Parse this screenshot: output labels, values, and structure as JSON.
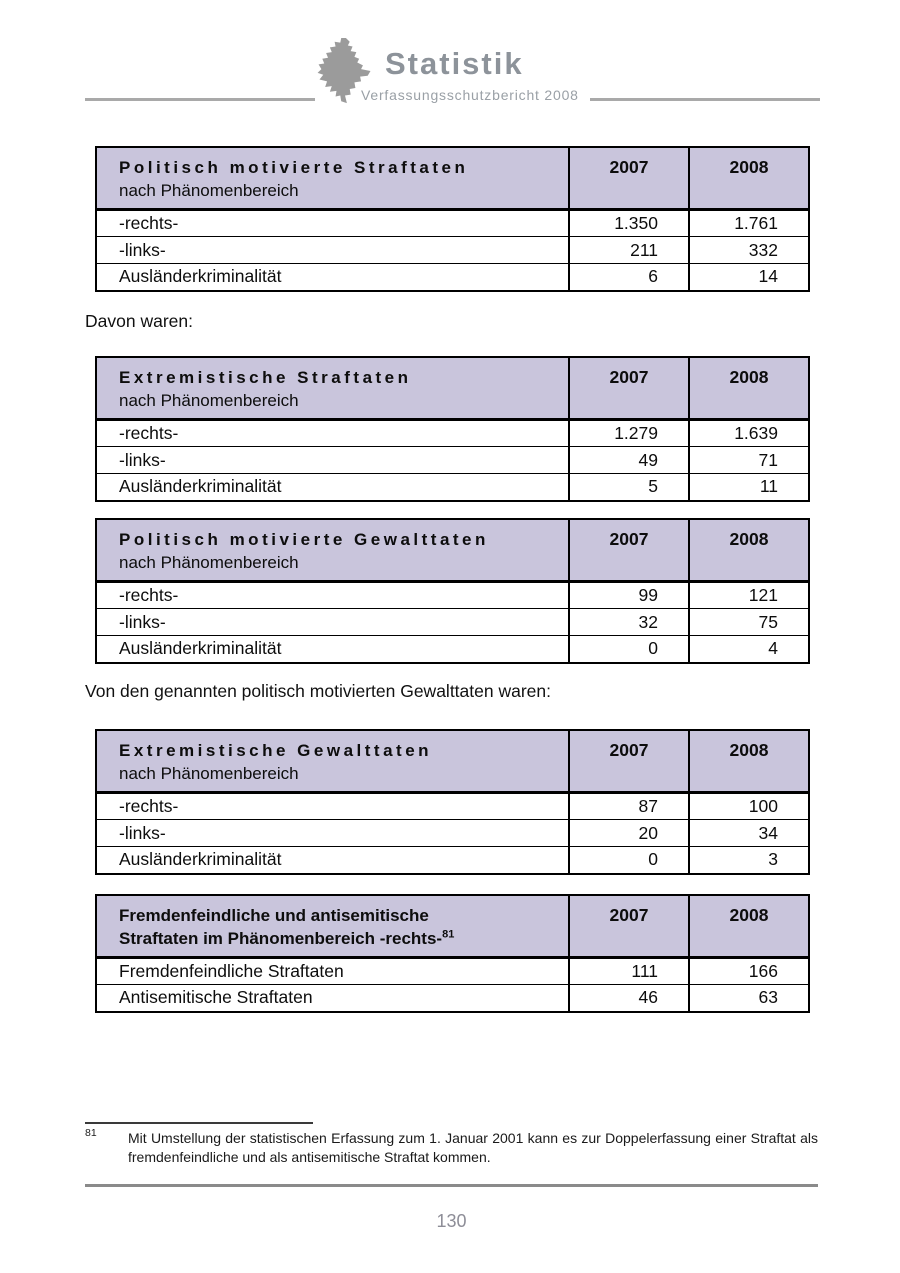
{
  "header": {
    "brand": "Statistik",
    "subtitle": "Verfassungsschutzbericht 2008",
    "logo_icon": "state-map-silhouette",
    "brand_color": "#8d939a",
    "logo_color": "#9b9b9b",
    "rule_color": "#a9a9a9"
  },
  "colors": {
    "table_header_bg": "#c9c5dc",
    "table_border": "#000000",
    "page_number_gray": "#8d8d97"
  },
  "intro1": "Davon waren:",
  "intro2": "Von den genannten politisch motivierten Gewalttaten waren:",
  "tables": [
    {
      "title": "Politisch motivierte Straftaten",
      "subtitle": "nach Phänomenbereich",
      "col_2007": "2007",
      "col_2008": "2008",
      "rows": [
        [
          "-rechts-",
          "1.350",
          "1.761"
        ],
        [
          "-links-",
          "211",
          "332"
        ],
        [
          "Ausländerkriminalität",
          "6",
          "14"
        ]
      ]
    },
    {
      "title": "Extremistische Straftaten",
      "subtitle": "nach Phänomenbereich",
      "col_2007": "2007",
      "col_2008": "2008",
      "rows": [
        [
          "-rechts-",
          "1.279",
          "1.639"
        ],
        [
          "-links-",
          "49",
          "71"
        ],
        [
          "Ausländerkriminalität",
          "5",
          "11"
        ]
      ]
    },
    {
      "title": "Politisch motivierte Gewalttaten",
      "subtitle": "nach Phänomenbereich",
      "col_2007": "2007",
      "col_2008": "2008",
      "rows": [
        [
          "-rechts-",
          "99",
          "121"
        ],
        [
          "-links-",
          "32",
          "75"
        ],
        [
          "Ausländerkriminalität",
          "0",
          "4"
        ]
      ]
    },
    {
      "title": "Extremistische Gewalttaten",
      "subtitle": "nach Phänomenbereich",
      "col_2007": "2007",
      "col_2008": "2008",
      "rows": [
        [
          "-rechts-",
          "87",
          "100"
        ],
        [
          "-links-",
          "20",
          "34"
        ],
        [
          "Ausländerkriminalität",
          "0",
          "3"
        ]
      ]
    },
    {
      "title_line1": "Fremdenfeindliche und antisemitische",
      "title_line2": "Straftaten im Phänomenbereich -rechts-",
      "footnote_ref": "81",
      "col_2007": "2007",
      "col_2008": "2008",
      "rows": [
        [
          "Fremdenfeindliche Straftaten",
          "111",
          "166"
        ],
        [
          "Antisemitische Straftaten",
          "46",
          "63"
        ]
      ]
    }
  ],
  "footnote": {
    "number": "81",
    "text": "Mit Umstellung der statistischen Erfassung zum 1. Januar 2001 kann es zur Doppelerfassung einer Straftat als fremdenfeindliche und als antisemitische Straftat kommen."
  },
  "page_number": "130"
}
